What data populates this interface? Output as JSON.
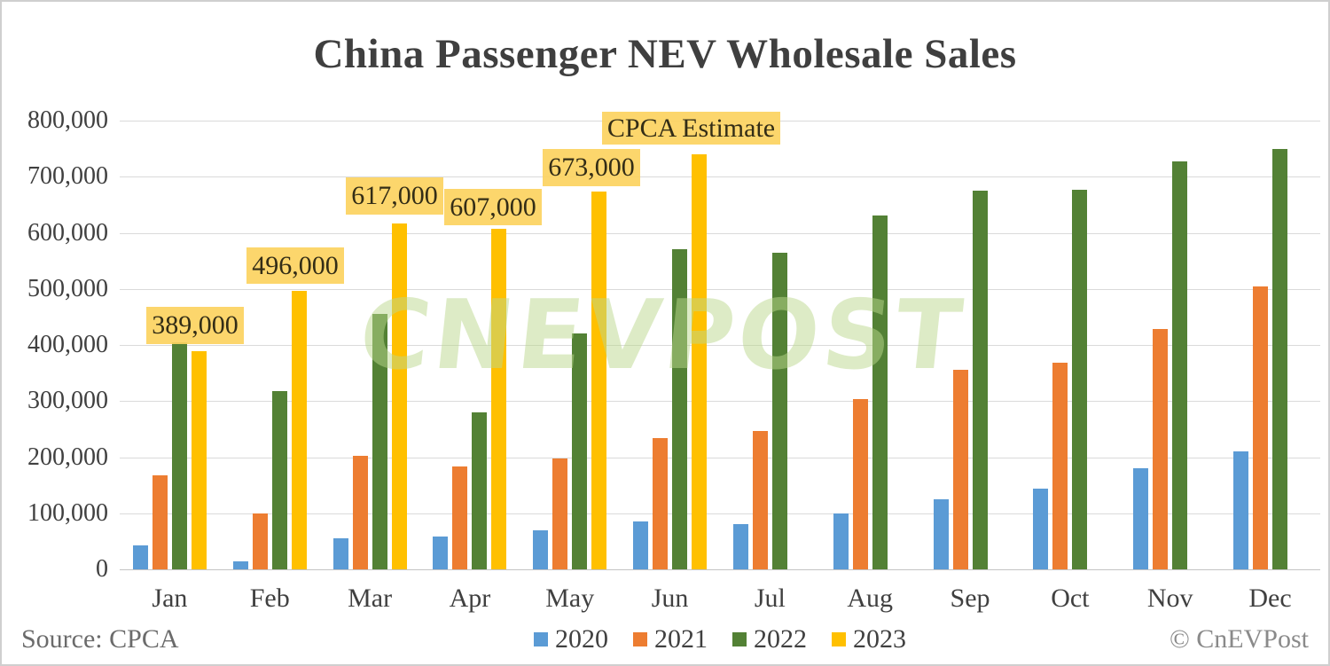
{
  "title": "China Passenger NEV Wholesale Sales",
  "source_label": "Source: CPCA",
  "copyright_label": "© CnEVPost",
  "watermark": "CNEVPOST",
  "chart_data": {
    "type": "bar",
    "title": "China Passenger NEV Wholesale Sales",
    "categories": [
      "Jan",
      "Feb",
      "Mar",
      "Apr",
      "May",
      "Jun",
      "Jul",
      "Aug",
      "Sep",
      "Oct",
      "Nov",
      "Dec"
    ],
    "series": [
      {
        "name": "2020",
        "color": "#5B9BD5",
        "values": [
          43000,
          15000,
          56000,
          59000,
          70000,
          85000,
          80000,
          100000,
          125000,
          144000,
          181000,
          210000
        ]
      },
      {
        "name": "2021",
        "color": "#ED7D31",
        "values": [
          168000,
          100000,
          202000,
          184000,
          197000,
          234000,
          246000,
          304000,
          355000,
          368000,
          429000,
          505000
        ]
      },
      {
        "name": "2022",
        "color": "#538135",
        "values": [
          405000,
          317000,
          455000,
          280000,
          421000,
          571000,
          564000,
          631000,
          675000,
          676000,
          728000,
          750000
        ]
      },
      {
        "name": "2023",
        "color": "#FFC000",
        "values": [
          389000,
          496000,
          617000,
          607000,
          673000,
          740000,
          null,
          null,
          null,
          null,
          null,
          null
        ]
      }
    ],
    "annotations": [
      {
        "text": "389,000",
        "month": "Jan",
        "series": "2023"
      },
      {
        "text": "496,000",
        "month": "Feb",
        "series": "2023"
      },
      {
        "text": "617,000",
        "month": "Mar",
        "series": "2023"
      },
      {
        "text": "607,000",
        "month": "Apr",
        "series": "2023"
      },
      {
        "text": "673,000",
        "month": "May",
        "series": "2023"
      },
      {
        "text": "CPCA Estimate",
        "month": "Jun",
        "series": "2023"
      }
    ],
    "ylim": [
      0,
      800000
    ],
    "ytick_step": 100000,
    "yticks": [
      "800,000",
      "700,000",
      "600,000",
      "500,000",
      "400,000",
      "300,000",
      "200,000",
      "100,000",
      "0"
    ],
    "grid": true,
    "legend": [
      "2020",
      "2021",
      "2022",
      "2023"
    ],
    "legend_position": "bottom"
  }
}
